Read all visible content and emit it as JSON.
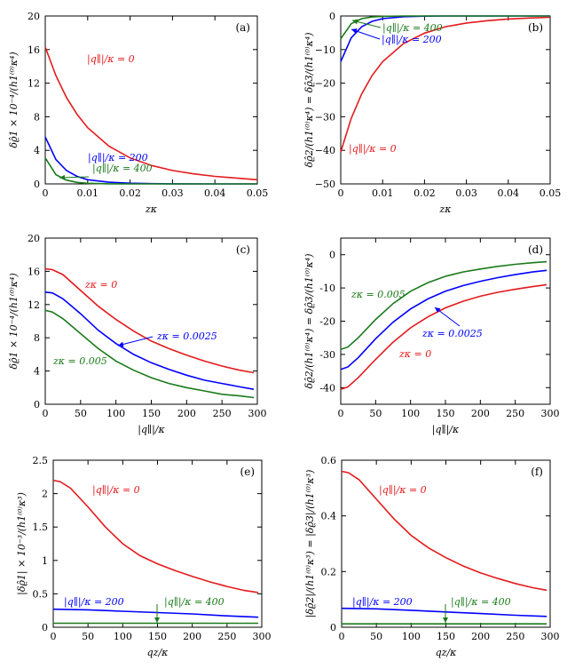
{
  "figure": {
    "title": ""
  },
  "chart_data": [
    {
      "id": "a",
      "type": "line",
      "panel_label": "(a)",
      "xlabel": "zκ",
      "ylabel": "δϱ̂1 × 10⁻⁴/(h1⁽⁰⁾κ⁴)",
      "xlim": [
        0,
        0.05
      ],
      "ylim": [
        0,
        20
      ],
      "xticks": [
        0,
        0.01,
        0.02,
        0.03,
        0.04,
        0.05
      ],
      "xtick_labels": [
        "0",
        "0.01",
        "0.02",
        "0.03",
        "0.04",
        "0.05"
      ],
      "yticks": [
        0,
        4,
        8,
        12,
        16,
        20
      ],
      "ytick_labels": [
        "0",
        "4",
        "8",
        "12",
        "16",
        "20"
      ],
      "series": [
        {
          "name": "|q∥|/κ = 0",
          "color": "#e41a1c",
          "x": [
            0,
            0.0025,
            0.005,
            0.0075,
            0.01,
            0.015,
            0.02,
            0.025,
            0.03,
            0.035,
            0.04,
            0.045,
            0.05
          ],
          "values": [
            16.3,
            12.9,
            10.3,
            8.3,
            6.7,
            4.5,
            3.1,
            2.2,
            1.6,
            1.2,
            0.9,
            0.7,
            0.5
          ]
        },
        {
          "name": "|q∥|/κ = 200",
          "color": "#0000ff",
          "x": [
            0,
            0.0025,
            0.005,
            0.0075,
            0.01,
            0.015,
            0.02,
            0.025,
            0.03,
            0.04,
            0.05
          ],
          "values": [
            5.6,
            2.9,
            1.6,
            0.9,
            0.5,
            0.2,
            0.08,
            0.03,
            0.01,
            0,
            0
          ]
        },
        {
          "name": "|q∥|/κ = 400",
          "color": "#1a7a1a",
          "x": [
            0,
            0.0025,
            0.005,
            0.0075,
            0.01,
            0.015,
            0.02,
            0.03,
            0.04,
            0.05
          ],
          "values": [
            3.1,
            1.1,
            0.45,
            0.18,
            0.07,
            0.01,
            0,
            0,
            0,
            0
          ]
        }
      ],
      "annotations": [
        {
          "text": "|q∥|/κ = 0",
          "color": "#e41a1c"
        },
        {
          "text": "|q∥|/κ = 200",
          "color": "#0000ff"
        },
        {
          "text": "|q∥|/κ = 400",
          "color": "#1a7a1a"
        }
      ]
    },
    {
      "id": "b",
      "type": "line",
      "panel_label": "(b)",
      "xlabel": "zκ",
      "ylabel": "δϱ̂2/(h1⁽⁰⁾κ⁴) = δϱ̂3/(h1⁽⁰⁾κ⁴)",
      "xlim": [
        0,
        0.05
      ],
      "ylim": [
        -50,
        0
      ],
      "xticks": [
        0,
        0.01,
        0.02,
        0.03,
        0.04,
        0.05
      ],
      "xtick_labels": [
        "0",
        "0.01",
        "0.02",
        "0.03",
        "0.04",
        "0.05"
      ],
      "yticks": [
        -50,
        -40,
        -30,
        -20,
        -10,
        0
      ],
      "ytick_labels": [
        "−50",
        "−40",
        "−30",
        "−20",
        "−10",
        "0"
      ],
      "series": [
        {
          "name": "|q∥|/κ = 0",
          "color": "#e41a1c",
          "x": [
            0,
            0.0025,
            0.005,
            0.0075,
            0.01,
            0.015,
            0.02,
            0.025,
            0.03,
            0.035,
            0.04,
            0.045,
            0.05
          ],
          "values": [
            -40.5,
            -30.5,
            -23.2,
            -17.7,
            -13.6,
            -8.2,
            -5.1,
            -3.2,
            -2.1,
            -1.4,
            -0.9,
            -0.6,
            -0.4
          ]
        },
        {
          "name": "|q∥|/κ = 200",
          "color": "#0000ff",
          "x": [
            0,
            0.0025,
            0.005,
            0.0075,
            0.01,
            0.015,
            0.02,
            0.025,
            0.03,
            0.05
          ],
          "values": [
            -13.6,
            -6.5,
            -3.2,
            -1.6,
            -0.8,
            -0.2,
            -0.05,
            -0.01,
            0,
            0
          ]
        },
        {
          "name": "|q∥|/κ = 400",
          "color": "#1a7a1a",
          "x": [
            0,
            0.0025,
            0.005,
            0.0075,
            0.01,
            0.015,
            0.02,
            0.05
          ],
          "values": [
            -6.8,
            -2.3,
            -0.8,
            -0.3,
            -0.1,
            0,
            0,
            0
          ]
        }
      ],
      "annotations": [
        {
          "text": "|q∥|/κ = 0",
          "color": "#e41a1c"
        },
        {
          "text": "|q∥|/κ = 200",
          "color": "#0000ff"
        },
        {
          "text": "|q∥|/κ = 400",
          "color": "#1a7a1a"
        }
      ]
    },
    {
      "id": "c",
      "type": "line",
      "panel_label": "(c)",
      "xlabel": "|q∥|/κ",
      "ylabel": "δϱ̂1 × 10⁻⁴/(h1⁽⁰⁾κ⁴)",
      "xlim": [
        0,
        300
      ],
      "ylim": [
        0,
        20
      ],
      "xticks": [
        0,
        50,
        100,
        150,
        200,
        250,
        300
      ],
      "xtick_labels": [
        "0",
        "50",
        "100",
        "150",
        "200",
        "250",
        "300"
      ],
      "yticks": [
        0,
        4,
        8,
        12,
        16,
        20
      ],
      "ytick_labels": [
        "0",
        "4",
        "8",
        "12",
        "16",
        "20"
      ],
      "series": [
        {
          "name": "zκ = 0",
          "color": "#e41a1c",
          "x": [
            0,
            10,
            25,
            50,
            75,
            100,
            125,
            150,
            175,
            200,
            225,
            250,
            275,
            295
          ],
          "values": [
            16.3,
            16.2,
            15.6,
            13.7,
            11.8,
            10.2,
            8.8,
            7.6,
            6.7,
            5.9,
            5.2,
            4.6,
            4.1,
            3.8
          ]
        },
        {
          "name": "zκ = 0.0025",
          "color": "#0000ff",
          "x": [
            0,
            10,
            25,
            50,
            75,
            100,
            125,
            150,
            175,
            200,
            225,
            250,
            275,
            295
          ],
          "values": [
            13.5,
            13.4,
            12.7,
            10.9,
            8.9,
            7.3,
            6.0,
            5.0,
            4.2,
            3.5,
            2.9,
            2.5,
            2.1,
            1.8
          ]
        },
        {
          "name": "zκ = 0.005",
          "color": "#1a7a1a",
          "x": [
            0,
            10,
            25,
            50,
            75,
            100,
            125,
            150,
            175,
            200,
            225,
            250,
            275,
            295
          ],
          "values": [
            11.3,
            11.1,
            10.3,
            8.5,
            6.7,
            5.2,
            4.1,
            3.2,
            2.5,
            2.0,
            1.6,
            1.2,
            1.0,
            0.8
          ]
        }
      ],
      "annotations": [
        {
          "text": "zκ = 0",
          "color": "#e41a1c"
        },
        {
          "text": "zκ = 0.0025",
          "color": "#0000ff"
        },
        {
          "text": "zκ = 0.005",
          "color": "#1a7a1a"
        }
      ]
    },
    {
      "id": "d",
      "type": "line",
      "panel_label": "(d)",
      "xlabel": "|q∥|/κ",
      "ylabel": "δϱ̂2/(h1⁽⁰⁾κ⁴) = δϱ̂3/(h1⁽⁰⁾κ⁴)",
      "xlim": [
        0,
        300
      ],
      "ylim": [
        -45,
        5
      ],
      "xticks": [
        0,
        50,
        100,
        150,
        200,
        250,
        300
      ],
      "xtick_labels": [
        "0",
        "50",
        "100",
        "150",
        "200",
        "250",
        "300"
      ],
      "yticks": [
        -40,
        -30,
        -20,
        -10,
        0
      ],
      "ytick_labels": [
        "-40",
        "-30",
        "-20",
        "-10",
        "0"
      ],
      "series": [
        {
          "name": "zκ = 0",
          "color": "#e41a1c",
          "x": [
            0,
            10,
            25,
            50,
            75,
            100,
            125,
            150,
            175,
            200,
            225,
            250,
            275,
            295
          ],
          "values": [
            -40.5,
            -39.8,
            -37.0,
            -31.5,
            -26.3,
            -22.0,
            -18.7,
            -16.0,
            -14.0,
            -12.5,
            -11.3,
            -10.4,
            -9.6,
            -9.0
          ]
        },
        {
          "name": "zκ = 0.0025",
          "color": "#0000ff",
          "x": [
            0,
            10,
            25,
            50,
            75,
            100,
            125,
            150,
            175,
            200,
            225,
            250,
            275,
            295
          ],
          "values": [
            -34.5,
            -33.8,
            -31.0,
            -25.3,
            -20.3,
            -16.3,
            -13.3,
            -11.0,
            -9.3,
            -8.0,
            -6.9,
            -6.0,
            -5.2,
            -4.7
          ]
        },
        {
          "name": "zκ = 0.005",
          "color": "#1a7a1a",
          "x": [
            0,
            10,
            25,
            50,
            75,
            100,
            125,
            150,
            175,
            200,
            225,
            250,
            275,
            295
          ],
          "values": [
            -28.5,
            -27.8,
            -25.0,
            -19.5,
            -14.7,
            -11.0,
            -8.4,
            -6.5,
            -5.2,
            -4.3,
            -3.5,
            -2.9,
            -2.4,
            -2.1
          ]
        }
      ],
      "annotations": [
        {
          "text": "zκ = 0",
          "color": "#e41a1c"
        },
        {
          "text": "zκ = 0.0025",
          "color": "#0000ff"
        },
        {
          "text": "zκ = 0.005",
          "color": "#1a7a1a"
        }
      ]
    },
    {
      "id": "e",
      "type": "line",
      "panel_label": "(e)",
      "xlabel": "qz/κ",
      "ylabel": "|δϱ̂1| × 10⁻³/(h1⁽⁰⁾κ³)",
      "xlim": [
        0,
        300
      ],
      "ylim": [
        0,
        2.5
      ],
      "xticks": [
        0,
        50,
        100,
        150,
        200,
        250,
        300
      ],
      "xtick_labels": [
        "0",
        "50",
        "100",
        "150",
        "200",
        "250",
        "300"
      ],
      "yticks": [
        0,
        0.5,
        1,
        1.5,
        2,
        2.5
      ],
      "ytick_labels": [
        "0",
        "0.5",
        "1",
        "1.5",
        "2",
        "2.5"
      ],
      "series": [
        {
          "name": "|q∥|/κ = 0",
          "color": "#e41a1c",
          "x": [
            0,
            10,
            25,
            50,
            75,
            100,
            125,
            150,
            175,
            200,
            225,
            250,
            275,
            295
          ],
          "values": [
            2.2,
            2.18,
            2.08,
            1.8,
            1.5,
            1.25,
            1.07,
            0.95,
            0.85,
            0.76,
            0.68,
            0.61,
            0.55,
            0.52
          ]
        },
        {
          "name": "|q∥|/κ = 200",
          "color": "#0000ff",
          "x": [
            0,
            50,
            100,
            150,
            200,
            250,
            295
          ],
          "values": [
            0.27,
            0.26,
            0.24,
            0.22,
            0.2,
            0.17,
            0.15
          ]
        },
        {
          "name": "|q∥|/κ = 400",
          "color": "#1a7a1a",
          "x": [
            0,
            100,
            200,
            295
          ],
          "values": [
            0.06,
            0.06,
            0.06,
            0.06
          ]
        }
      ],
      "annotations": [
        {
          "text": "|q∥|/κ = 0",
          "color": "#e41a1c"
        },
        {
          "text": "|q∥|/κ = 200",
          "color": "#0000ff"
        },
        {
          "text": "|q∥|/κ = 400",
          "color": "#1a7a1a"
        }
      ]
    },
    {
      "id": "f",
      "type": "line",
      "panel_label": "(f)",
      "xlabel": "qz/κ",
      "ylabel": "|δϱ̂2|/(h1⁽⁰⁾κ³) = |δϱ̂3|/(h1⁽⁰⁾κ³)",
      "xlim": [
        0,
        300
      ],
      "ylim": [
        0,
        0.6
      ],
      "xticks": [
        0,
        50,
        100,
        150,
        200,
        250,
        300
      ],
      "xtick_labels": [
        "0",
        "50",
        "100",
        "150",
        "200",
        "250",
        "300"
      ],
      "yticks": [
        0,
        0.2,
        0.4,
        0.6
      ],
      "ytick_labels": [
        "0",
        "0.2",
        "0.4",
        "0.6"
      ],
      "series": [
        {
          "name": "|q∥|/κ = 0",
          "color": "#e41a1c",
          "x": [
            0,
            10,
            25,
            50,
            75,
            100,
            125,
            150,
            175,
            200,
            225,
            250,
            275,
            295
          ],
          "values": [
            0.56,
            0.555,
            0.53,
            0.46,
            0.39,
            0.33,
            0.285,
            0.25,
            0.22,
            0.195,
            0.175,
            0.157,
            0.142,
            0.133
          ]
        },
        {
          "name": "|q∥|/κ = 200",
          "color": "#0000ff",
          "x": [
            0,
            50,
            100,
            150,
            200,
            250,
            295
          ],
          "values": [
            0.068,
            0.066,
            0.061,
            0.055,
            0.049,
            0.043,
            0.039
          ]
        },
        {
          "name": "|q∥|/κ = 400",
          "color": "#1a7a1a",
          "x": [
            0,
            100,
            200,
            295
          ],
          "values": [
            0.012,
            0.012,
            0.012,
            0.012
          ]
        }
      ],
      "annotations": [
        {
          "text": "|q∥|/κ = 0",
          "color": "#e41a1c"
        },
        {
          "text": "|q∥|/κ = 200",
          "color": "#0000ff"
        },
        {
          "text": "|q∥|/κ = 400",
          "color": "#1a7a1a"
        }
      ]
    }
  ]
}
